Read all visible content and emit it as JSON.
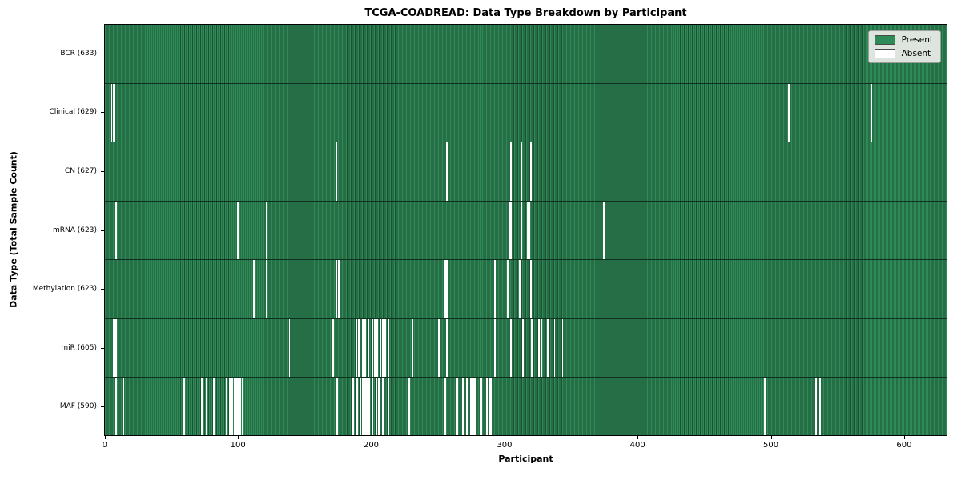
{
  "chart_data": {
    "type": "heatmap",
    "title": "TCGA-COADREAD: Data Type Breakdown by Participant",
    "xlabel": "Participant",
    "ylabel": "Data Type (Total Sample Count)",
    "x_ticks": [
      0,
      100,
      200,
      300,
      400,
      500,
      600
    ],
    "n_participants": 633,
    "grid": false,
    "legend_position": "upper right",
    "colors": {
      "present": "#2e8b57",
      "bar_edge": "#1c5134",
      "absent": "#ffffff",
      "legend_bg": "#dee4de"
    },
    "legend": [
      {
        "label": "Present",
        "color": "#2e8b57"
      },
      {
        "label": "Absent",
        "color": "#ffffff"
      }
    ],
    "rows": [
      {
        "label": "BCR (633)",
        "data_type": "BCR",
        "total": 633,
        "absent_participants": []
      },
      {
        "label": "Clinical (629)",
        "data_type": "Clinical",
        "total": 629,
        "absent_participants": [
          4,
          6,
          513,
          575
        ]
      },
      {
        "label": "CN (627)",
        "data_type": "CN",
        "total": 627,
        "absent_participants": [
          173,
          254,
          256,
          304,
          312,
          319
        ]
      },
      {
        "label": "mRNA (623)",
        "data_type": "mRNA",
        "total": 623,
        "absent_participants": [
          7,
          8,
          99,
          121,
          303,
          304,
          312,
          317,
          318,
          374
        ]
      },
      {
        "label": "Methylation (623)",
        "data_type": "Methylation",
        "total": 623,
        "absent_participants": [
          111,
          121,
          173,
          175,
          255,
          256,
          292,
          302,
          311,
          319
        ]
      },
      {
        "label": "miR (605)",
        "data_type": "miR",
        "total": 605,
        "absent_participants": [
          6,
          8,
          138,
          171,
          188,
          190,
          193,
          195,
          197,
          200,
          202,
          204,
          206,
          208,
          210,
          212,
          230,
          250,
          256,
          292,
          304,
          313,
          320,
          325,
          327,
          332,
          337,
          343
        ]
      },
      {
        "label": "MAF (590)",
        "data_type": "MAF",
        "total": 590,
        "absent_participants": [
          8,
          13,
          59,
          72,
          76,
          81,
          91,
          93,
          95,
          97,
          98,
          99,
          101,
          103,
          174,
          186,
          188,
          189,
          191,
          193,
          195,
          196,
          198,
          200,
          203,
          205,
          208,
          212,
          228,
          255,
          264,
          268,
          271,
          274,
          276,
          277,
          282,
          286,
          288,
          289,
          495,
          533,
          536
        ]
      }
    ]
  }
}
